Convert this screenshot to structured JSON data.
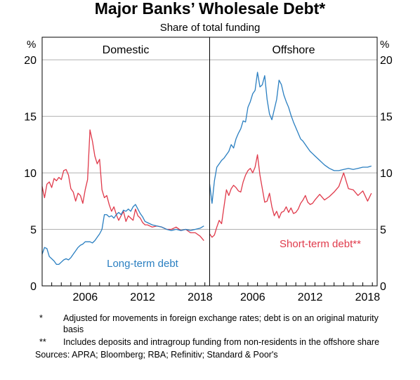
{
  "chart_data": {
    "type": "line",
    "title": "Major Banks’ Wholesale Debt*",
    "subtitle": "Share of total funding",
    "y_unit": "%",
    "ylim": [
      0,
      22
    ],
    "y_ticks": [
      "0",
      "5",
      "10",
      "15",
      "20"
    ],
    "x_ticks": [
      "2006",
      "2012",
      "2018"
    ],
    "xlim": [
      2002.0,
      2019.5
    ],
    "colors": {
      "short_term": "#e03a4b",
      "long_term": "#2a7fc1",
      "grid": "#b0b0b0"
    },
    "panels": [
      {
        "title": "Domestic",
        "series": [
          {
            "key": "short_term",
            "x": [
              2002.0,
              2002.25,
              2002.5,
              2002.75,
              2003.0,
              2003.25,
              2003.5,
              2003.75,
              2004.0,
              2004.25,
              2004.5,
              2004.75,
              2005.0,
              2005.25,
              2005.5,
              2005.75,
              2006.0,
              2006.25,
              2006.5,
              2006.75,
              2007.0,
              2007.25,
              2007.5,
              2007.75,
              2008.0,
              2008.25,
              2008.5,
              2008.75,
              2009.0,
              2009.25,
              2009.5,
              2009.75,
              2010.0,
              2010.25,
              2010.5,
              2010.75,
              2011.0,
              2011.25,
              2011.5,
              2011.75,
              2012.0,
              2012.25,
              2012.5,
              2012.75,
              2013.0,
              2013.5,
              2014.0,
              2014.5,
              2015.0,
              2015.5,
              2016.0,
              2016.5,
              2017.0,
              2017.5,
              2018.0,
              2018.5,
              2018.9
            ],
            "values": [
              8.8,
              7.8,
              9.0,
              9.2,
              8.7,
              9.5,
              9.3,
              9.6,
              9.4,
              10.2,
              10.3,
              9.8,
              8.6,
              8.3,
              7.5,
              8.2,
              8.0,
              7.3,
              8.5,
              9.4,
              13.8,
              12.8,
              11.5,
              10.8,
              11.2,
              8.5,
              7.8,
              8.0,
              7.2,
              6.6,
              7.0,
              6.3,
              5.8,
              6.2,
              6.6,
              5.7,
              6.2,
              6.0,
              5.8,
              6.8,
              6.2,
              6.0,
              5.6,
              5.4,
              5.4,
              5.2,
              5.3,
              5.2,
              5.0,
              5.0,
              5.2,
              4.9,
              5.0,
              4.7,
              4.7,
              4.4,
              4.0
            ]
          },
          {
            "key": "long_term",
            "x": [
              2002.0,
              2002.25,
              2002.5,
              2002.75,
              2003.0,
              2003.25,
              2003.5,
              2003.75,
              2004.0,
              2004.25,
              2004.5,
              2004.75,
              2005.0,
              2005.25,
              2005.5,
              2005.75,
              2006.0,
              2006.25,
              2006.5,
              2006.75,
              2007.0,
              2007.25,
              2007.5,
              2007.75,
              2008.0,
              2008.25,
              2008.5,
              2008.75,
              2009.0,
              2009.25,
              2009.5,
              2009.75,
              2010.0,
              2010.25,
              2010.5,
              2010.75,
              2011.0,
              2011.25,
              2011.5,
              2011.75,
              2012.0,
              2012.25,
              2012.5,
              2012.75,
              2013.0,
              2013.5,
              2014.0,
              2014.5,
              2015.0,
              2015.5,
              2016.0,
              2016.5,
              2017.0,
              2017.5,
              2018.0,
              2018.5,
              2018.9
            ],
            "values": [
              2.8,
              3.4,
              3.3,
              2.6,
              2.4,
              2.2,
              1.9,
              1.9,
              2.1,
              2.3,
              2.4,
              2.3,
              2.5,
              2.8,
              3.1,
              3.4,
              3.6,
              3.7,
              3.9,
              3.9,
              3.9,
              3.8,
              4.0,
              4.3,
              4.6,
              5.0,
              6.3,
              6.3,
              6.1,
              6.2,
              6.0,
              6.3,
              6.5,
              6.3,
              6.7,
              6.6,
              6.8,
              6.6,
              7.0,
              7.2,
              6.8,
              6.4,
              6.1,
              5.7,
              5.6,
              5.4,
              5.3,
              5.2,
              5.0,
              4.9,
              5.0,
              4.9,
              5.0,
              4.9,
              5.0,
              5.1,
              5.3
            ]
          }
        ],
        "annotations": [
          {
            "text": "Long-term debt",
            "series": "long_term"
          }
        ]
      },
      {
        "title": "Offshore",
        "series": [
          {
            "key": "short_term",
            "x": [
              2002.0,
              2002.25,
              2002.5,
              2002.75,
              2003.0,
              2003.25,
              2003.5,
              2003.75,
              2004.0,
              2004.25,
              2004.5,
              2004.75,
              2005.0,
              2005.25,
              2005.5,
              2005.75,
              2006.0,
              2006.25,
              2006.5,
              2006.75,
              2007.0,
              2007.25,
              2007.5,
              2007.75,
              2008.0,
              2008.25,
              2008.5,
              2008.75,
              2009.0,
              2009.25,
              2009.5,
              2009.75,
              2010.0,
              2010.25,
              2010.5,
              2010.75,
              2011.0,
              2011.25,
              2011.5,
              2011.75,
              2012.0,
              2012.25,
              2012.5,
              2012.75,
              2013.0,
              2013.5,
              2014.0,
              2014.5,
              2015.0,
              2015.5,
              2016.0,
              2016.5,
              2017.0,
              2017.5,
              2018.0,
              2018.5,
              2018.9
            ],
            "values": [
              4.6,
              4.3,
              4.5,
              5.2,
              5.8,
              5.5,
              7.0,
              8.5,
              8.0,
              8.6,
              8.9,
              8.7,
              8.4,
              8.3,
              9.2,
              9.8,
              10.2,
              10.4,
              10.0,
              10.5,
              11.6,
              9.8,
              8.6,
              7.4,
              7.5,
              8.2,
              7.0,
              6.2,
              6.6,
              6.0,
              6.5,
              6.6,
              7.0,
              6.5,
              6.9,
              6.4,
              6.5,
              6.8,
              7.3,
              7.6,
              8.0,
              7.4,
              7.2,
              7.3,
              7.6,
              8.1,
              7.6,
              7.9,
              8.3,
              8.8,
              10.0,
              8.6,
              8.5,
              8.0,
              8.4,
              7.5,
              8.2
            ]
          },
          {
            "key": "long_term",
            "x": [
              2002.0,
              2002.25,
              2002.5,
              2002.75,
              2003.0,
              2003.25,
              2003.5,
              2003.75,
              2004.0,
              2004.25,
              2004.5,
              2004.75,
              2005.0,
              2005.25,
              2005.5,
              2005.75,
              2006.0,
              2006.25,
              2006.5,
              2006.75,
              2007.0,
              2007.25,
              2007.5,
              2007.75,
              2008.0,
              2008.25,
              2008.5,
              2008.75,
              2009.0,
              2009.25,
              2009.5,
              2009.75,
              2010.0,
              2010.25,
              2010.5,
              2010.75,
              2011.0,
              2011.25,
              2011.5,
              2011.75,
              2012.0,
              2012.25,
              2012.5,
              2012.75,
              2013.0,
              2013.5,
              2014.0,
              2014.5,
              2015.0,
              2015.5,
              2016.0,
              2016.5,
              2017.0,
              2017.5,
              2018.0,
              2018.5,
              2018.9
            ],
            "values": [
              9.0,
              7.3,
              9.3,
              10.5,
              10.8,
              11.1,
              11.3,
              11.6,
              11.9,
              12.5,
              12.2,
              13.0,
              13.5,
              13.9,
              14.6,
              14.5,
              15.8,
              16.3,
              17.0,
              17.3,
              18.9,
              17.6,
              17.8,
              18.6,
              16.5,
              15.2,
              14.7,
              15.6,
              16.5,
              18.2,
              17.8,
              16.9,
              16.3,
              15.8,
              15.1,
              14.5,
              14.0,
              13.5,
              13.0,
              12.8,
              12.5,
              12.2,
              11.9,
              11.7,
              11.5,
              11.1,
              10.7,
              10.4,
              10.2,
              10.2,
              10.3,
              10.4,
              10.3,
              10.4,
              10.5,
              10.5,
              10.6
            ]
          }
        ],
        "annotations": [
          {
            "text": "Short-term debt**",
            "series": "short_term"
          }
        ]
      }
    ]
  },
  "footnotes": [
    {
      "mark": "*",
      "text": "Adjusted for movements in foreign exchange rates; debt is on an original maturity basis"
    },
    {
      "mark": "**",
      "text": "Includes deposits and intragroup funding from non-residents in the offshore share"
    }
  ],
  "sources": "Sources:   APRA; Bloomberg; RBA; Refinitiv; Standard & Poor's"
}
